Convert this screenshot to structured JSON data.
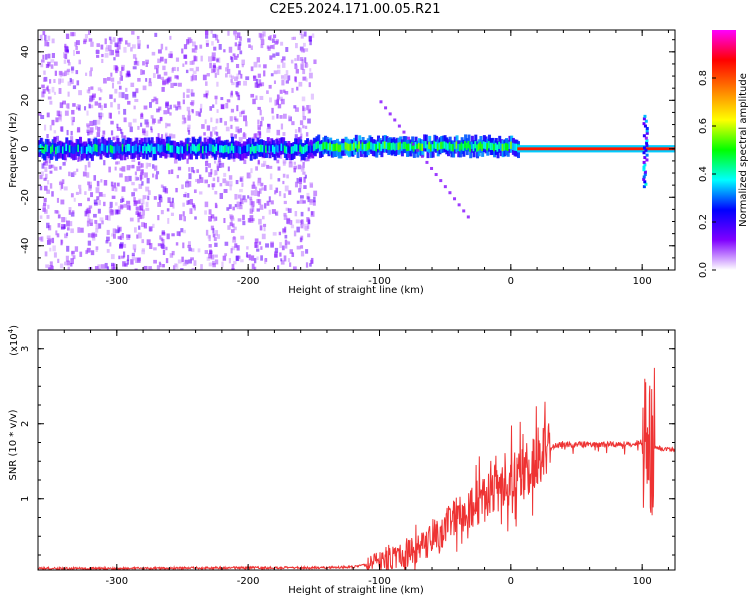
{
  "title": "C2E5.2024.171.00.05.R21",
  "chart_data": [
    {
      "type": "heatmap",
      "xlabel": "Height of straight line (km)",
      "ylabel": "Frequency (Hz)",
      "xlim": [
        -360,
        125
      ],
      "ylim": [
        -50,
        49
      ],
      "xticks": [
        -300,
        -200,
        -100,
        0,
        100
      ],
      "xtick_labels": [
        "-300",
        "-200",
        "-100",
        "0",
        "100"
      ],
      "yticks": [
        -40,
        -20,
        0,
        20,
        40
      ],
      "ytick_labels": [
        "-40",
        "-20",
        "0",
        "20",
        "40"
      ],
      "colorbar": {
        "label": "Normalized spectral amplitude",
        "range": [
          0,
          1
        ],
        "ticks": [
          0.0,
          0.2,
          0.4,
          0.6,
          0.8
        ],
        "tick_labels": [
          "0.0",
          "0.2",
          "0.4",
          "0.6",
          "0.8"
        ],
        "colormap": [
          "#ffffff",
          "#8000ff",
          "#0000ff",
          "#00ffff",
          "#00ff00",
          "#ffff00",
          "#ff8000",
          "#ff0000",
          "#ff00ff"
        ]
      },
      "features": [
        {
          "name": "noise-field",
          "x_range": [
            -360,
            -150
          ],
          "note_level": 0.15
        },
        {
          "name": "main-ridge-low",
          "x_range": [
            -360,
            -150
          ],
          "freq": 0,
          "level": 0.35
        },
        {
          "name": "main-ridge-mid",
          "x_range": [
            -150,
            5
          ],
          "freq": 1,
          "level": 0.45
        },
        {
          "name": "carrier-line",
          "x_range": [
            5,
            125
          ],
          "freq": 0,
          "level": 0.85
        },
        {
          "name": "burst",
          "x_range": [
            100,
            106
          ],
          "freq": 0,
          "level": 0.5
        }
      ]
    },
    {
      "type": "line",
      "xlabel": "Height of straight line (km)",
      "ylabel": "SNR (10 * v/v)",
      "y_multiplier": "(x10",
      "y_multiplier_exp": "4",
      "y_multiplier_close": ")",
      "xlim": [
        -360,
        125
      ],
      "ylim": [
        0.05,
        3.25
      ],
      "xticks": [
        -300,
        -200,
        -100,
        0,
        100
      ],
      "xtick_labels": [
        "-300",
        "-200",
        "-100",
        "0",
        "100"
      ],
      "yticks": [
        1,
        2,
        3
      ],
      "ytick_labels": [
        "1",
        "2",
        "3"
      ],
      "color": "#ee3333",
      "series": [
        {
          "x": [
            -360,
            -300,
            -200,
            -150,
            -120,
            -100,
            -90,
            -80,
            -70,
            -60,
            -50,
            -40,
            -30,
            -20,
            -15,
            -10,
            -5,
            0,
            5,
            10,
            15,
            20,
            25,
            30,
            35,
            40,
            50,
            60,
            70,
            80,
            90,
            95,
            100,
            103,
            105,
            107,
            110,
            115,
            120,
            125
          ],
          "y": [
            0.07,
            0.07,
            0.08,
            0.08,
            0.09,
            0.15,
            0.2,
            0.25,
            0.35,
            0.45,
            0.6,
            0.8,
            0.9,
            1.0,
            1.1,
            1.15,
            1.2,
            1.25,
            1.35,
            1.4,
            1.45,
            1.55,
            1.62,
            1.68,
            1.72,
            1.73,
            1.72,
            1.73,
            1.72,
            1.73,
            1.72,
            1.74,
            1.75,
            1.8,
            1.7,
            1.68,
            1.68,
            1.67,
            1.66,
            1.65
          ]
        }
      ]
    }
  ]
}
